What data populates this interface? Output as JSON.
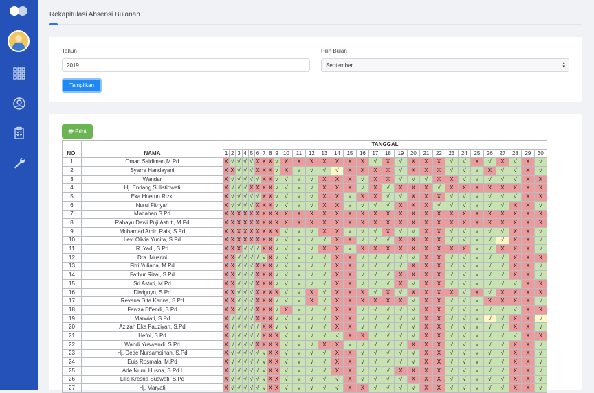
{
  "page": {
    "title": "Rekapitulasi Absensi Bulanan."
  },
  "sidebar": {
    "icons": [
      "logo-icon",
      "avatar",
      "grid-icon",
      "user-circle-icon",
      "clipboard-icon",
      "wrench-icon"
    ]
  },
  "filter": {
    "tahun_label": "Tahun",
    "tahun_value": "2019",
    "bulan_label": "Pilih Bulan",
    "bulan_value": "September",
    "show_button": "Tampilkan"
  },
  "report": {
    "print_button": "🖶 Print",
    "col_no": "NO.",
    "col_nama": "NAMA",
    "col_tanggal": "TANGGAL",
    "days": [
      "1",
      "2",
      "3",
      "4",
      "5",
      "6",
      "7",
      "8",
      "9",
      "10",
      "11",
      "12",
      "13",
      "14",
      "15",
      "16",
      "17",
      "18",
      "19",
      "20",
      "21",
      "22",
      "23",
      "24",
      "25",
      "26",
      "27",
      "28",
      "29",
      "30"
    ],
    "legend": {
      "x": "X",
      "c": "√"
    },
    "colors": {
      "absent": "#ea9b9b",
      "present": "#c8e2b2",
      "other": "#fdf7c6"
    },
    "rows": [
      {
        "no": "1",
        "nama": "Oman Saidiman,M.Pd",
        "att": "xccccxxxcxxxxxxxcxcxxxccxcxcxc"
      },
      {
        "no": "2",
        "nama": "Syarra Handayani",
        "att": "xxcccxxxcxcccyxxxxcxxxcccxccxc"
      },
      {
        "no": "3",
        "nama": "Wandar",
        "att": "xcccccxxccccxxxcxxcccxxcccccxx"
      },
      {
        "no": "4",
        "nama": "Hj. Endang Sulistiowati",
        "att": "xcccxxxxccccxxxcxcxxxcxxxxxxxx"
      },
      {
        "no": "5",
        "nama": "Eka Hoerun Rizki",
        "att": "xcccccxxccccxxcxxccxxxccccccxx"
      },
      {
        "no": "6",
        "nama": "Nurul Fitriyah",
        "att": "xccccxxxccccxxccccxxxccccccxxc"
      },
      {
        "no": "7",
        "nama": "Manahan.S.Pd",
        "att": "xxxxxxxxxxxxxxxxxxxxxxxxxxxxxx"
      },
      {
        "no": "8",
        "nama": "Rahayu Dewi Puji Astuti, M.Pd",
        "att": "xxxxxxxxxxxxxxxxxxxxxxxxxxxxxx"
      },
      {
        "no": "9",
        "nama": "Mohamad Amin Rais, S.Pd",
        "att": "xxxxxxxxxcccxxcccxccxxcccccxxc"
      },
      {
        "no": "10",
        "nama": "Levi Olivia Yunita, S.Pd",
        "att": "xxxxxxxxcccccxxcccxxxxccccyxxc"
      },
      {
        "no": "11",
        "nama": "R. Yadi, S.Pd",
        "att": "xxxcccxxccccxxcxxxxxxxxxccxxxc"
      },
      {
        "no": "12",
        "nama": "Dra. Musrini",
        "att": "xxcccccxcccccxxcccccxxcccccxxx"
      },
      {
        "no": "13",
        "nama": "Fitri Yuliana, M.Pd",
        "att": "xxcccxxxcccccxxccccxxxcccccxxc"
      },
      {
        "no": "14",
        "nama": "Fathur Rizal, S.Pd",
        "att": "xxcccxxxcccccxxcccxxxxcccccxxc"
      },
      {
        "no": "15",
        "nama": "Sri Astuti, M.Pd",
        "att": "xxcccxxxcccccxxcccxcxxccccccxx"
      },
      {
        "no": "16",
        "nama": "Diwignyo, S.Pd",
        "att": "xxcccxxxxccxcxxxcxcxxxxcxcxxxx"
      },
      {
        "no": "17",
        "nama": "Revana Gita Karina, S.Pd",
        "att": "xxcccxxxcccxcxxxxxxcxxcccxxxxc"
      },
      {
        "no": "18",
        "nama": "Fawza Effendi, S.Pd",
        "att": "xxcccxxxcxcccxxcccccxxccccccxx"
      },
      {
        "no": "19",
        "nama": "Marwiati, S.Pd",
        "att": "xccccxxxcccccxxcccccxxcccycxxy"
      },
      {
        "no": "20",
        "nama": "Azizah Eka Fauziyah, S.Pd",
        "att": "xcccccxxcccccxxcccccxxcccccxxc"
      },
      {
        "no": "21",
        "nama": "Hefni, S.Pd",
        "att": "xcccccxxxcccccxxccccxxccccccxx"
      },
      {
        "no": "22",
        "nama": "Wandi Yuswandi, S.Pd",
        "att": "xccccxxxxcccxxcccccxxxcccccxxc"
      },
      {
        "no": "23",
        "nama": "Hj. Dede Nursamsinah, S.Pd",
        "att": "xccccccxxccccxxcccccxxcccccxxc"
      },
      {
        "no": "24",
        "nama": "Euis Rosmala, M.Pd",
        "att": "xccccccxxccccxxcccccxxcccccxxc"
      },
      {
        "no": "25",
        "nama": "Ade Nurul Husna, S.Pd.I",
        "att": "xccccccxxccccxxcccxxxxcccccxxc"
      },
      {
        "no": "26",
        "nama": "Lilis Kresna Suswati, S.Pd",
        "att": "xccccccxxcccccxccccxxxcccccxxc"
      },
      {
        "no": "27",
        "nama": "Hj. Maryati",
        "att": "xccccccxxcccccxxccccxxcccccxxc"
      }
    ]
  }
}
